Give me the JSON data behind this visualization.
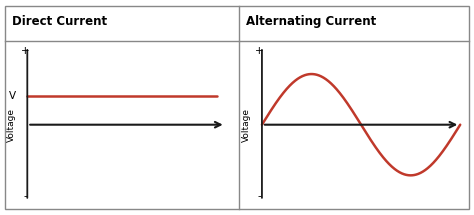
{
  "title_left": "Direct Current",
  "title_right": "Alternating Current",
  "ylabel": "Voltage",
  "dc_color": "#c0392b",
  "ac_color": "#c0392b",
  "axis_color": "#1a1a1a",
  "title_fontsize": 8.5,
  "label_fontsize": 6.5,
  "tick_label_fontsize": 7.5,
  "background_color": "#ffffff",
  "border_color": "#888888",
  "dc_voltage_level": 0.35,
  "ac_amplitude": 0.62,
  "outer_border_color": "#888888"
}
